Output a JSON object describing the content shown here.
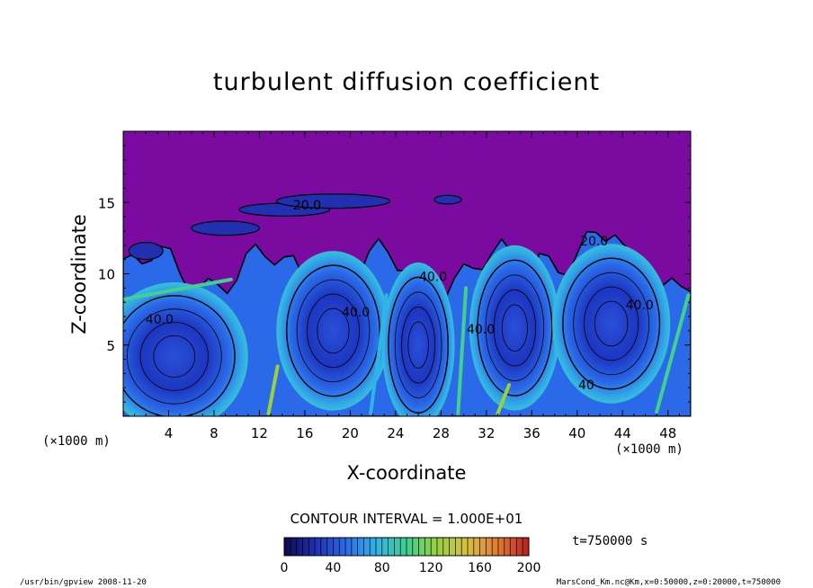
{
  "chart_data": {
    "type": "heatmap",
    "title": "turbulent diffusion coefficient",
    "xlabel": "X-coordinate",
    "ylabel": "Z-coordinate",
    "x_unit_left": "(×1000 m)",
    "x_unit_right": "(×1000 m)",
    "xlim": [
      0,
      50
    ],
    "ylim": [
      0,
      20
    ],
    "xticks": [
      4,
      8,
      12,
      16,
      20,
      24,
      28,
      32,
      36,
      40,
      44,
      48
    ],
    "yticks": [
      5,
      10,
      15
    ],
    "contour_interval_label": "CONTOUR INTERVAL = 1.000E+01",
    "contour_labels": [
      {
        "text": "40.0",
        "x": 3.2,
        "z": 6.5
      },
      {
        "text": "40.0",
        "x": 20.5,
        "z": 7.0
      },
      {
        "text": "40.0",
        "x": 27.3,
        "z": 9.5
      },
      {
        "text": "40.0",
        "x": 31.5,
        "z": 5.8
      },
      {
        "text": "40.0",
        "x": 45.5,
        "z": 7.5
      },
      {
        "text": "20.0",
        "x": 16.2,
        "z": 14.5
      },
      {
        "text": "20.0",
        "x": 41.5,
        "z": 12.0
      },
      {
        "text": "40",
        "x": 40.8,
        "z": 1.9
      }
    ],
    "colorbar": {
      "min": 0,
      "max": 200,
      "ticks": [
        0,
        40,
        80,
        120,
        160,
        200
      ],
      "colors": [
        "#0a0a50",
        "#2030b0",
        "#2a6ae8",
        "#30b4e8",
        "#40d090",
        "#9ad040",
        "#d8c040",
        "#e07a30",
        "#b82020"
      ]
    },
    "background_color": "#7a0aa0",
    "time_label": "t=750000 s",
    "footer_left": "/usr/bin/gpview   2008-11-20",
    "footer_right": "MarsCond_Km.nc@Km,x=0:50000,z=0:20000,t=750000"
  }
}
